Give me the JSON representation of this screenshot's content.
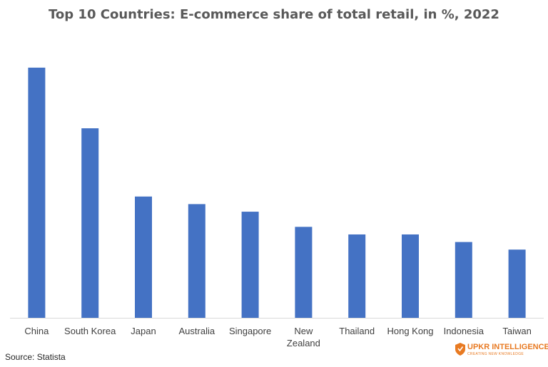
{
  "chart_data": {
    "type": "bar",
    "title": "Top 10 Countries: E-commerce share of total retail, in %, 2022",
    "categories": [
      "China",
      "South Korea",
      "Japan",
      "Australia",
      "Singapore",
      "New Zealand",
      "Thailand",
      "Hong Kong",
      "Indonesia",
      "Taiwan"
    ],
    "category_lines": [
      [
        "China"
      ],
      [
        "South Korea"
      ],
      [
        "Japan"
      ],
      [
        "Australia"
      ],
      [
        "Singapore"
      ],
      [
        "New",
        "Zealand"
      ],
      [
        "Thailand"
      ],
      [
        "Hong Kong"
      ],
      [
        "Indonesia"
      ],
      [
        "Taiwan"
      ]
    ],
    "values": [
      33,
      25,
      16,
      15,
      14,
      12,
      11,
      11,
      10,
      9
    ],
    "ylim": [
      0,
      36
    ],
    "grid": false,
    "legend": false,
    "bar_color": "#4472c4",
    "axis_color": "#d9d9d9"
  },
  "footer": {
    "source": "Source: Statista"
  },
  "brand": {
    "name": "UPKR INTELLIGENCE",
    "tagline": "CREATING NEW KNOWLEDGE",
    "color": "#e87a22",
    "icon": "shield-icon"
  }
}
